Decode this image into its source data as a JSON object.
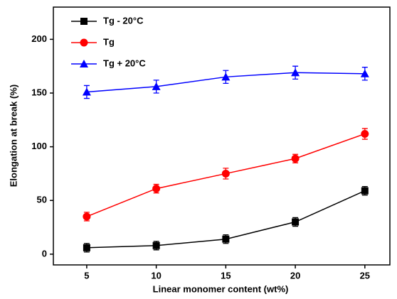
{
  "chart_data": {
    "type": "line",
    "x_label": "Linear monomer content (wt%)",
    "y_label": "Elongation at break (%)",
    "x": [
      5,
      10,
      15,
      20,
      25
    ],
    "xlim": [
      2.6,
      26.8
    ],
    "xticks": [
      5,
      10,
      15,
      20,
      25
    ],
    "ylim": [
      -10,
      230
    ],
    "yticks": [
      0,
      50,
      100,
      150,
      200
    ],
    "legend": "upper left",
    "series": [
      {
        "name": "Tg - 20°C",
        "color": "#000000",
        "marker": "square",
        "values": [
          6,
          8,
          14,
          30,
          59
        ],
        "errors": [
          4,
          4,
          4,
          4,
          4
        ]
      },
      {
        "name": "Tg",
        "color": "#ff0000",
        "marker": "circle",
        "values": [
          35,
          61,
          75,
          89,
          112
        ],
        "errors": [
          4,
          4,
          5,
          4,
          5
        ]
      },
      {
        "name": "Tg + 20°C",
        "color": "#0000ff",
        "marker": "triangle",
        "values": [
          151,
          156,
          165,
          169,
          168
        ],
        "errors": [
          6,
          6,
          6,
          6,
          6
        ]
      }
    ]
  }
}
